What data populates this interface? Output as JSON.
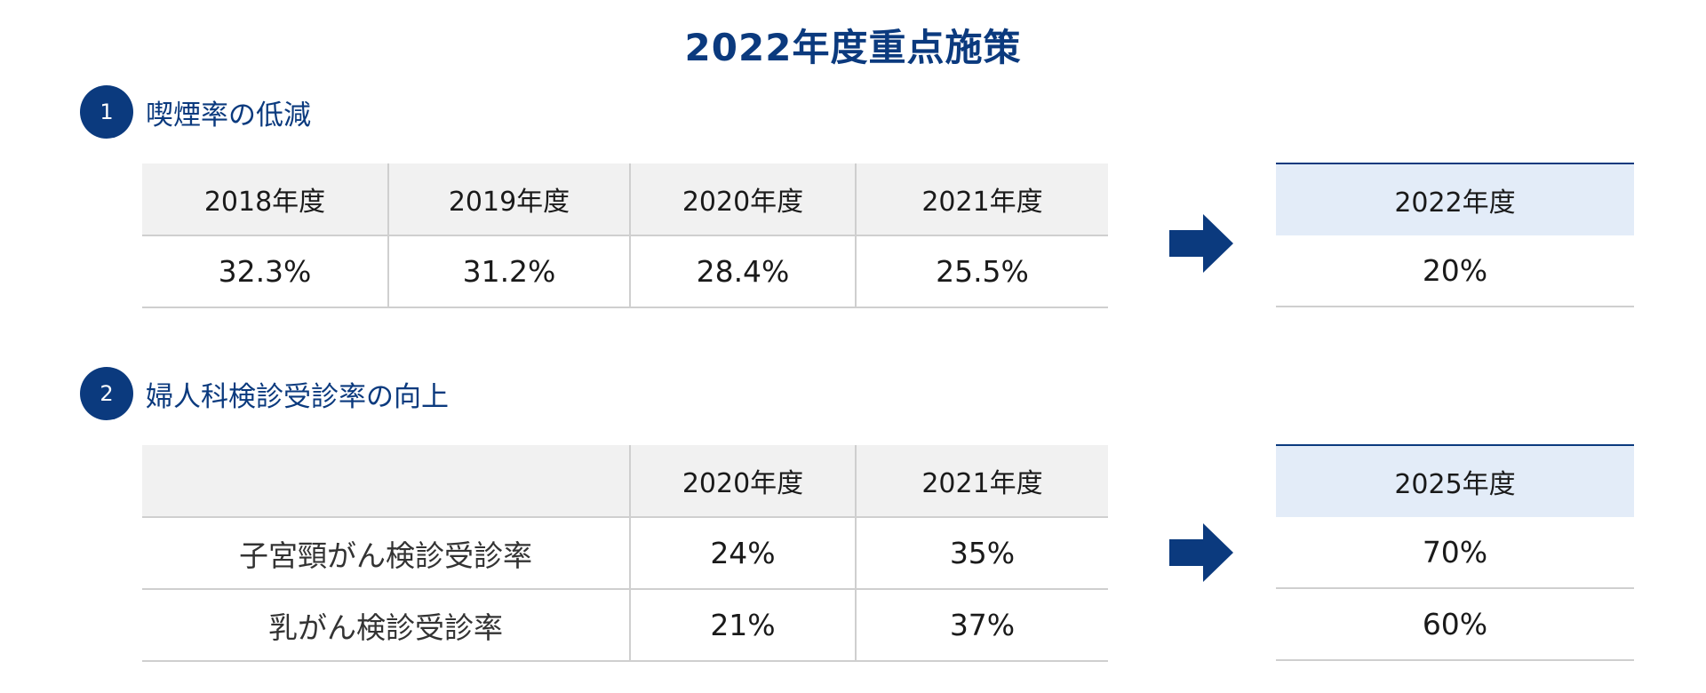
{
  "title": "2022年度重点施策",
  "colors": {
    "primary": "#0b3a7e",
    "header_bg": "#f1f1f1",
    "target_header_bg": "#e3ecf8"
  },
  "section1": {
    "number": "1",
    "title": "喫煙率の低減",
    "columns": [
      "2018年度",
      "2019年度",
      "2020年度",
      "2021年度"
    ],
    "values": [
      "32.3%",
      "31.2%",
      "28.4%",
      "25.5%"
    ],
    "target_year": "2022年度",
    "target_value": "20%"
  },
  "section2": {
    "number": "2",
    "title": "婦人科検診受診率の向上",
    "columns": [
      "",
      "2020年度",
      "2021年度"
    ],
    "rows": [
      {
        "label": "子宮頸がん検診受診率",
        "values": [
          "24%",
          "35%"
        ],
        "target": "70%"
      },
      {
        "label": "乳がん検診受診率",
        "values": [
          "21%",
          "37%"
        ],
        "target": "60%"
      }
    ],
    "target_year": "2025年度"
  }
}
